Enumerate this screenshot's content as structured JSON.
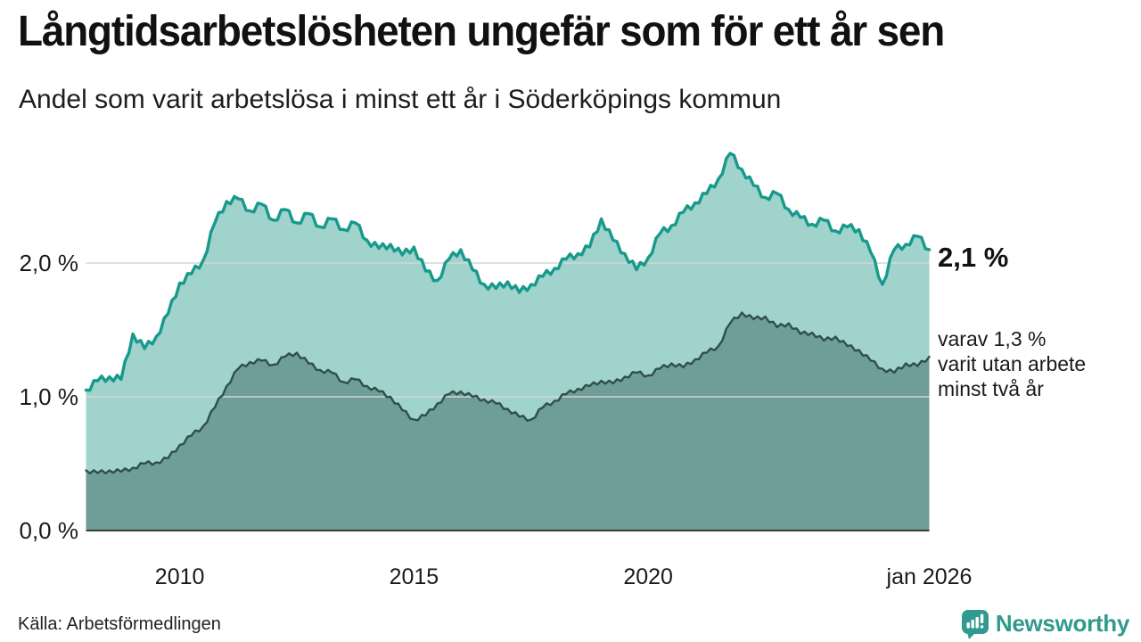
{
  "header": {
    "title": "Långtidsarbetslösheten ungefär som för ett år sen",
    "subtitle": "Andel som varit arbetslösa i minst ett år i Söderköpings kommun"
  },
  "annotations": {
    "latest_value": "2,1 %",
    "secondary": [
      "varav 1,3 %",
      "varit utan arbete",
      "minst två år"
    ]
  },
  "footer": {
    "source": "Källa: Arbetsförmedlingen",
    "logo_text": "Newsworthy"
  },
  "colors": {
    "series1_line": "#17998c",
    "series1_fill": "#a0d3cc",
    "series2_line": "#304f4a",
    "series2_fill": "#6f9d98",
    "gridline": "#d6d6d6",
    "baseline": "#3b3b3b",
    "logo_teal": "#2f9a8d"
  },
  "chart_data": {
    "type": "area",
    "title": "Långtidsarbetslösheten ungefär som för ett år sen",
    "subtitle": "Andel som varit arbetslösa i minst ett år i Söderköpings kommun",
    "unit": "%",
    "x_start": 2008.0,
    "x_step_years": 0.25,
    "x_end": 2026.0,
    "xlim": [
      2008.0,
      2026.0
    ],
    "ylim": [
      0,
      3.0
    ],
    "grid": "horizontal",
    "x_axis_ticks": [
      {
        "label": "2010",
        "year": 2010.0
      },
      {
        "label": "2015",
        "year": 2015.0
      },
      {
        "label": "2020",
        "year": 2020.0
      },
      {
        "label": "jan 2026",
        "year": 2026.0
      }
    ],
    "y_axis_ticks": [
      {
        "label": "0,0 %",
        "value": 0.0
      },
      {
        "label": "1,0 %",
        "value": 1.0
      },
      {
        "label": "2,0 %",
        "value": 2.0
      }
    ],
    "series": [
      {
        "name": "Andel arbetslösa minst ett år",
        "latest_label": "2,1 %",
        "latest_value": 2.1,
        "color": "#17998c",
        "fill": "#a0d3cc",
        "values": [
          1.05,
          1.12,
          1.15,
          1.13,
          1.47,
          1.36,
          1.45,
          1.62,
          1.85,
          1.92,
          2.02,
          2.3,
          2.46,
          2.48,
          2.39,
          2.44,
          2.32,
          2.4,
          2.3,
          2.37,
          2.27,
          2.33,
          2.25,
          2.3,
          2.17,
          2.11,
          2.14,
          2.06,
          2.12,
          1.94,
          1.87,
          2.03,
          2.1,
          1.95,
          1.84,
          1.81,
          1.86,
          1.78,
          1.84,
          1.9,
          1.96,
          2.03,
          2.07,
          2.12,
          2.33,
          2.17,
          2.07,
          1.95,
          2.04,
          2.22,
          2.28,
          2.38,
          2.45,
          2.52,
          2.63,
          2.82,
          2.7,
          2.58,
          2.49,
          2.52,
          2.4,
          2.34,
          2.29,
          2.32,
          2.24,
          2.27,
          2.25,
          2.08,
          1.84,
          2.1,
          2.14,
          2.2,
          2.1
        ]
      },
      {
        "name": "Andel arbetslösa minst två år",
        "latest_label": "varav 1,3 % varit utan arbete minst två år",
        "latest_value": 1.3,
        "color": "#304f4a",
        "fill": "#6f9d98",
        "values": [
          0.45,
          0.43,
          0.45,
          0.44,
          0.47,
          0.5,
          0.51,
          0.54,
          0.64,
          0.71,
          0.78,
          0.92,
          1.08,
          1.21,
          1.26,
          1.27,
          1.24,
          1.3,
          1.33,
          1.25,
          1.2,
          1.18,
          1.11,
          1.13,
          1.08,
          1.04,
          1.0,
          0.9,
          0.83,
          0.86,
          0.95,
          1.02,
          1.04,
          1.0,
          0.98,
          0.95,
          0.91,
          0.85,
          0.83,
          0.92,
          0.97,
          1.02,
          1.06,
          1.08,
          1.12,
          1.1,
          1.15,
          1.18,
          1.16,
          1.21,
          1.25,
          1.22,
          1.28,
          1.33,
          1.38,
          1.55,
          1.63,
          1.58,
          1.6,
          1.52,
          1.55,
          1.47,
          1.48,
          1.42,
          1.45,
          1.38,
          1.35,
          1.27,
          1.21,
          1.18,
          1.25,
          1.23,
          1.3
        ]
      }
    ]
  }
}
